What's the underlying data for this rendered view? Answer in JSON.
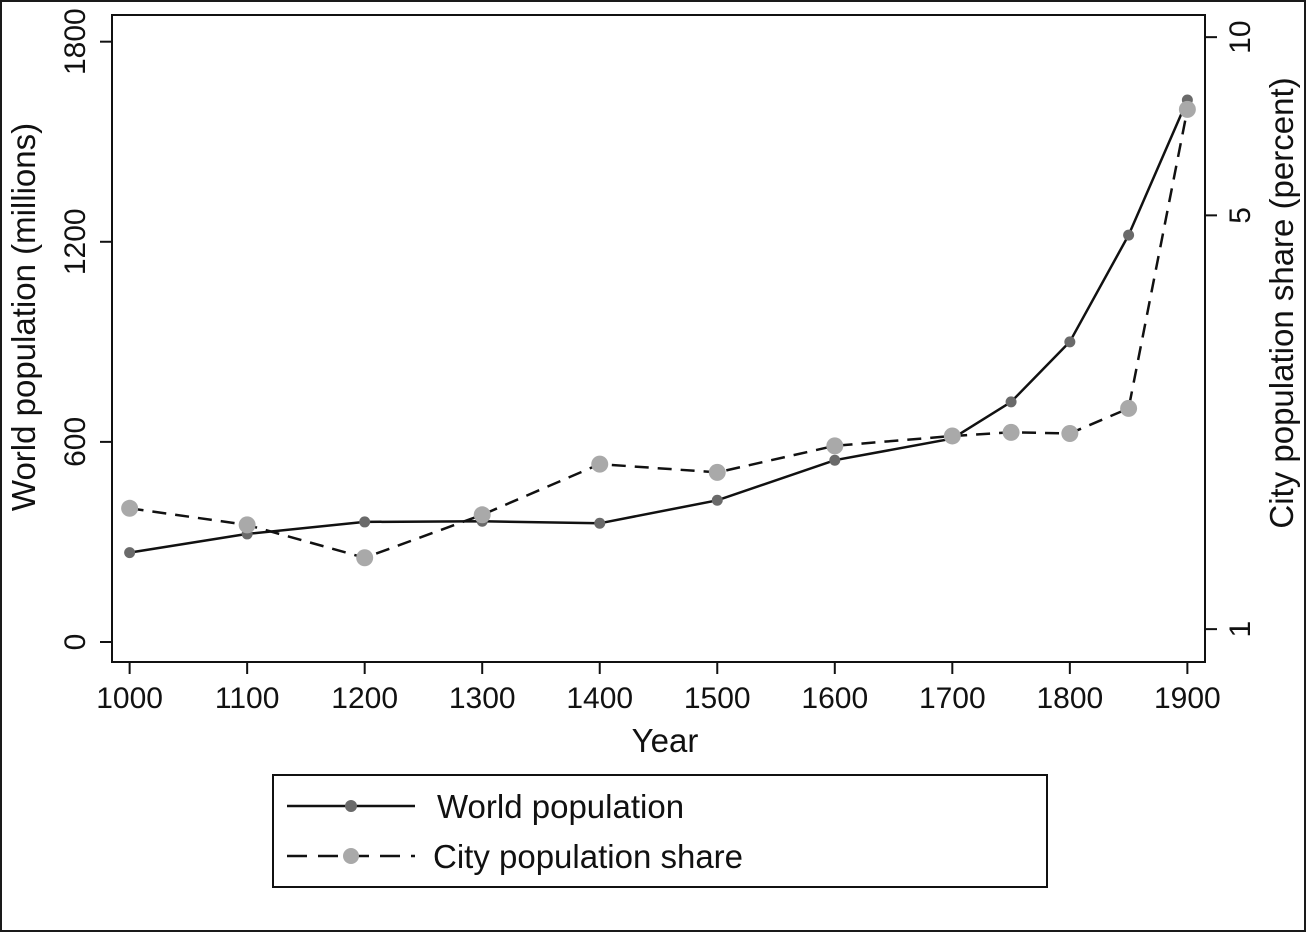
{
  "chart_data": {
    "type": "line",
    "title": "",
    "xlabel": "Year",
    "ylabel_left": "World population (millions)",
    "ylabel_right": "City population share (percent)",
    "x": [
      1000,
      1100,
      1200,
      1300,
      1400,
      1500,
      1600,
      1700,
      1750,
      1800,
      1850,
      1900
    ],
    "x_ticks": [
      "1000",
      "1100",
      "1200",
      "1300",
      "1400",
      "1500",
      "1600",
      "1700",
      "1800",
      "1900"
    ],
    "x_tick_values": [
      1000,
      1100,
      1200,
      1300,
      1400,
      1500,
      1600,
      1700,
      1800,
      1900
    ],
    "xlim": [
      985,
      1915
    ],
    "y_left_ticks": [
      "0",
      "600",
      "1200",
      "1800"
    ],
    "y_left_tick_values": [
      0,
      600,
      1200,
      1800
    ],
    "ylim_left": [
      -60,
      1880
    ],
    "y_right_ticks": [
      "1",
      "5",
      "10"
    ],
    "y_right_tick_values": [
      1,
      5,
      10
    ],
    "y_right_scale": "log",
    "ylim_right": [
      0.88,
      10.9
    ],
    "grid": false,
    "legend_position": "bottom",
    "series": [
      {
        "name": "World population",
        "axis": "left",
        "style": "solid",
        "color": "#6a6a6a",
        "values": [
          268,
          324,
          360,
          362,
          356,
          425,
          545,
          610,
          720,
          900,
          1220,
          1625
        ]
      },
      {
        "name": "City population share",
        "axis": "right",
        "style": "dashed",
        "color": "#a9a9a9",
        "values": [
          1.6,
          1.5,
          1.32,
          1.56,
          1.9,
          1.84,
          2.04,
          2.12,
          2.15,
          2.14,
          2.36,
          7.55
        ]
      }
    ]
  }
}
